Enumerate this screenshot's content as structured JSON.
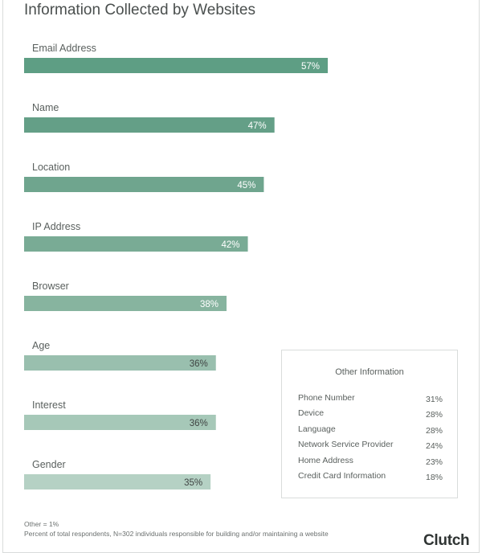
{
  "title": "Information Collected by Websites",
  "chart_data": {
    "type": "bar",
    "orientation": "horizontal",
    "title": "Information Collected by Websites",
    "categories": [
      "Email Address",
      "Name",
      "Location",
      "IP Address",
      "Browser",
      "Age",
      "Interest",
      "Gender"
    ],
    "values": [
      57,
      47,
      45,
      42,
      38,
      36,
      36,
      35
    ],
    "value_labels": [
      "57%",
      "47%",
      "45%",
      "42%",
      "38%",
      "36%",
      "36%",
      "35%"
    ],
    "bar_colors": [
      "#5e9e84",
      "#649f87",
      "#6fa58e",
      "#79ab95",
      "#87b49f",
      "#99bfae",
      "#a6c8b8",
      "#b5d1c4"
    ],
    "value_label_colors": [
      "#ffffff",
      "#ffffff",
      "#ffffff",
      "#ffffff",
      "#ffffff",
      "#3f4443",
      "#3f4443",
      "#3f4443"
    ],
    "xlim": [
      0,
      100
    ],
    "grid": false
  },
  "inset": {
    "title": "Other Information",
    "rows": [
      {
        "label": "Phone Number",
        "value": "31%"
      },
      {
        "label": "Device",
        "value": "28%"
      },
      {
        "label": "Language",
        "value": "28%"
      },
      {
        "label": "Network Service Provider",
        "value": "24%"
      },
      {
        "label": "Home Address",
        "value": "23%"
      },
      {
        "label": "Credit Card Information",
        "value": "18%"
      }
    ]
  },
  "footnotes": {
    "other": "Other = 1%",
    "respondents": "Percent of total respondents, N=302 individuals responsible for building and/or maintaining a website"
  },
  "brand": "Clutch"
}
